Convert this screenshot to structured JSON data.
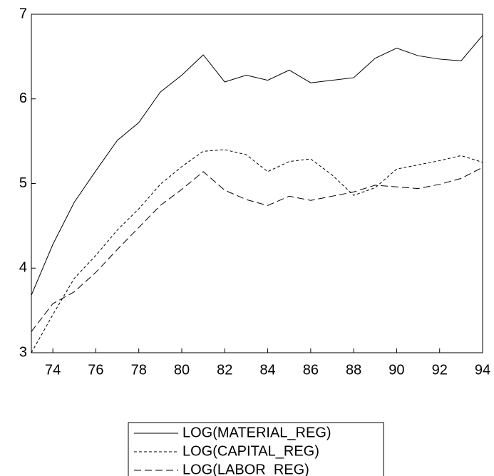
{
  "chart_data": {
    "type": "line",
    "x": [
      73,
      74,
      75,
      76,
      77,
      78,
      79,
      80,
      81,
      82,
      83,
      84,
      85,
      86,
      87,
      88,
      89,
      90,
      91,
      92,
      93,
      94
    ],
    "series": [
      {
        "name": "LOG(MATERIAL_REG)",
        "color": "#000000",
        "line_style": "solid",
        "values": [
          3.68,
          4.28,
          4.78,
          5.15,
          5.51,
          5.72,
          6.08,
          6.28,
          6.52,
          6.2,
          6.28,
          6.22,
          6.34,
          6.19,
          6.22,
          6.25,
          6.48,
          6.6,
          6.51,
          6.47,
          6.45,
          6.75
        ]
      },
      {
        "name": "LOG(CAPITAL_REG)",
        "color": "#000000",
        "line_style": "short-dash",
        "values": [
          3.0,
          3.45,
          3.88,
          4.15,
          4.45,
          4.7,
          4.99,
          5.2,
          5.38,
          5.4,
          5.34,
          5.14,
          5.26,
          5.29,
          5.1,
          4.86,
          4.95,
          5.17,
          5.22,
          5.27,
          5.33,
          5.25
        ]
      },
      {
        "name": "LOG(LABOR_REG)",
        "color": "#000000",
        "line_style": "long-dash",
        "values": [
          3.25,
          3.58,
          3.72,
          3.95,
          4.22,
          4.48,
          4.74,
          4.93,
          5.14,
          4.92,
          4.81,
          4.74,
          4.85,
          4.8,
          4.85,
          4.9,
          4.98,
          4.96,
          4.94,
          4.99,
          5.06,
          5.19
        ]
      }
    ],
    "xlim": [
      73,
      94
    ],
    "xticks": [
      74,
      76,
      78,
      80,
      82,
      84,
      86,
      88,
      90,
      92,
      94
    ],
    "ylim": [
      3,
      7
    ],
    "yticks": [
      3,
      4,
      5,
      6,
      7
    ],
    "legend": "bottom"
  }
}
